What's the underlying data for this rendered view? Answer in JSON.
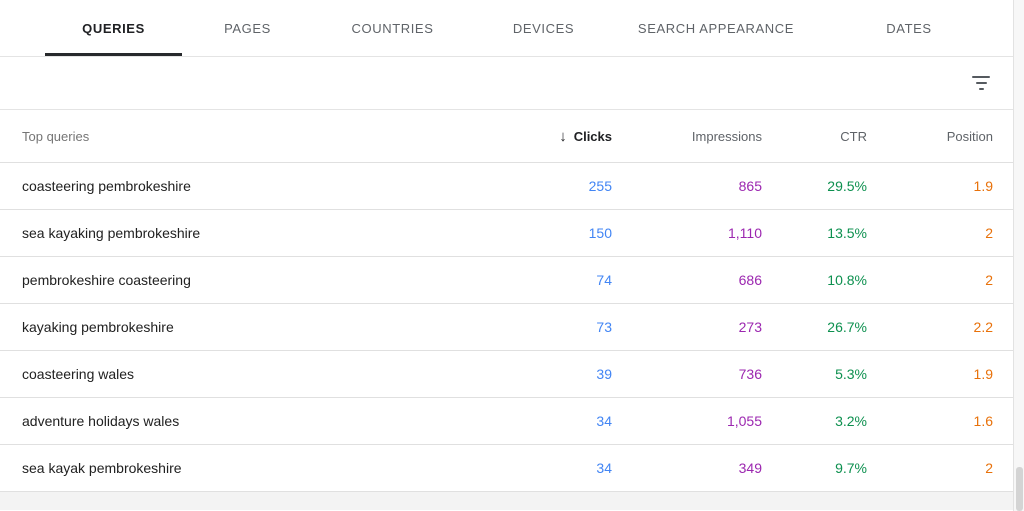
{
  "tabs": [
    {
      "label": "QUERIES",
      "active": true
    },
    {
      "label": "PAGES",
      "active": false
    },
    {
      "label": "COUNTRIES",
      "active": false
    },
    {
      "label": "DEVICES",
      "active": false
    },
    {
      "label": "SEARCH APPEARANCE",
      "active": false
    },
    {
      "label": "DATES",
      "active": false
    }
  ],
  "toolbar": {
    "filter_icon": "filter-list"
  },
  "table": {
    "query_header": "Top queries",
    "sort_arrow": "↓",
    "sorted_column": "Clicks",
    "columns": [
      {
        "label": "Clicks"
      },
      {
        "label": "Impressions"
      },
      {
        "label": "CTR"
      },
      {
        "label": "Position"
      }
    ],
    "colors": {
      "clicks": "#4285f4",
      "impressions": "#9c27b0",
      "ctr": "#0d904f",
      "position": "#e8710a"
    },
    "rows": [
      {
        "query": "coasteering pembrokeshire",
        "clicks": "255",
        "impressions": "865",
        "ctr": "29.5%",
        "position": "1.9"
      },
      {
        "query": "sea kayaking pembrokeshire",
        "clicks": "150",
        "impressions": "1,110",
        "ctr": "13.5%",
        "position": "2"
      },
      {
        "query": "pembrokeshire coasteering",
        "clicks": "74",
        "impressions": "686",
        "ctr": "10.8%",
        "position": "2"
      },
      {
        "query": "kayaking pembrokeshire",
        "clicks": "73",
        "impressions": "273",
        "ctr": "26.7%",
        "position": "2.2"
      },
      {
        "query": "coasteering wales",
        "clicks": "39",
        "impressions": "736",
        "ctr": "5.3%",
        "position": "1.9"
      },
      {
        "query": "adventure holidays wales",
        "clicks": "34",
        "impressions": "1,055",
        "ctr": "3.2%",
        "position": "1.6"
      },
      {
        "query": "sea kayak pembrokeshire",
        "clicks": "34",
        "impressions": "349",
        "ctr": "9.7%",
        "position": "2"
      }
    ]
  }
}
